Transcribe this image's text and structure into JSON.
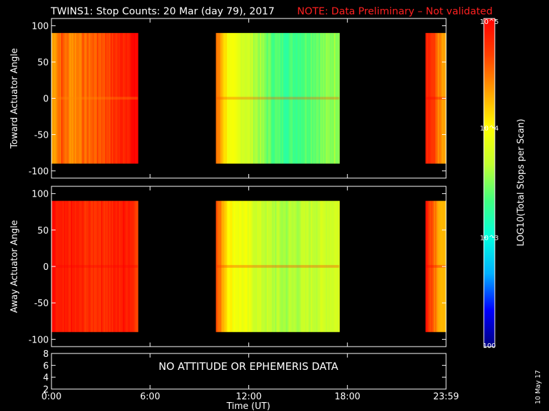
{
  "header": {
    "title": "TWINS1: Stop Counts: 20 Mar (day  79), 2017",
    "note": "NOTE: Data Preliminary – Not validated",
    "note_color": "#ff2020"
  },
  "footer": {
    "no_data_message": "NO ATTITUDE OR EPHEMERIS DATA",
    "side_date": "10 May 17"
  },
  "colorbar": {
    "label": "LOG10(Total Stops per Scan)",
    "ticks": [
      {
        "value": 100,
        "label": "100"
      },
      {
        "value": 1000,
        "label": "10^3"
      },
      {
        "value": 10000,
        "label": "10^4"
      },
      {
        "value": 100000,
        "label": "10^5"
      }
    ],
    "scale": "log",
    "colormap": [
      "#000080",
      "#0000ff",
      "#00b0ff",
      "#00ffe0",
      "#40ff80",
      "#c0ff30",
      "#ffff00",
      "#ffa000",
      "#ff4000",
      "#ff0000"
    ]
  },
  "chart_data": [
    {
      "type": "heatmap",
      "panel": "toward",
      "ylabel": "Toward Actuator Angle",
      "ylim": [
        -110,
        110
      ],
      "y_extent": [
        -90,
        90
      ],
      "yticks": [
        100,
        50,
        0,
        -50,
        -100
      ],
      "xlim_hours": [
        0,
        24
      ],
      "grid": false,
      "segments": [
        {
          "start": "0:00",
          "end": "5:15",
          "log_counts_profile": [
            4.3,
            4.6,
            4.4,
            4.5,
            4.55,
            4.6,
            4.7,
            4.8,
            4.9,
            5.0
          ]
        },
        {
          "start": "10:00",
          "end": "17:30",
          "log_counts_profile": [
            4.5,
            3.9,
            3.8,
            3.6,
            3.4,
            3.3,
            3.35,
            3.45,
            3.5,
            3.6
          ]
        },
        {
          "start": "22:45",
          "end": "23:59",
          "log_counts_profile": [
            4.9,
            4.7,
            4.4,
            4.2
          ]
        }
      ],
      "data_gaps": [
        [
          "5:15",
          "10:00"
        ],
        [
          "17:30",
          "22:45"
        ]
      ]
    },
    {
      "type": "heatmap",
      "panel": "away",
      "ylabel": "Away Actuator Angle",
      "ylim": [
        -110,
        110
      ],
      "y_extent": [
        -90,
        90
      ],
      "yticks": [
        100,
        50,
        0,
        -50,
        -100
      ],
      "xlim_hours": [
        0,
        24
      ],
      "grid": false,
      "segments": [
        {
          "start": "0:00",
          "end": "5:15",
          "log_counts_profile": [
            4.9,
            4.8,
            4.85,
            4.8,
            4.75,
            4.8,
            4.8,
            4.85,
            4.9,
            4.7
          ]
        },
        {
          "start": "10:00",
          "end": "17:30",
          "log_counts_profile": [
            4.6,
            4.0,
            3.9,
            3.75,
            3.65,
            3.6,
            3.65,
            3.7,
            3.75,
            3.8
          ]
        },
        {
          "start": "22:45",
          "end": "23:59",
          "log_counts_profile": [
            4.9,
            4.6,
            4.3,
            4.1
          ]
        }
      ],
      "data_gaps": [
        [
          "5:15",
          "10:00"
        ],
        [
          "17:30",
          "22:45"
        ]
      ]
    },
    {
      "type": "line",
      "panel": "ephemeris",
      "ylim": [
        2,
        8
      ],
      "yticks": [
        8,
        6,
        4,
        2
      ],
      "xlabel": "Time (UT)",
      "xticks": [
        "0:00",
        "6:00",
        "12:00",
        "18:00",
        "23:59"
      ],
      "series": []
    }
  ]
}
